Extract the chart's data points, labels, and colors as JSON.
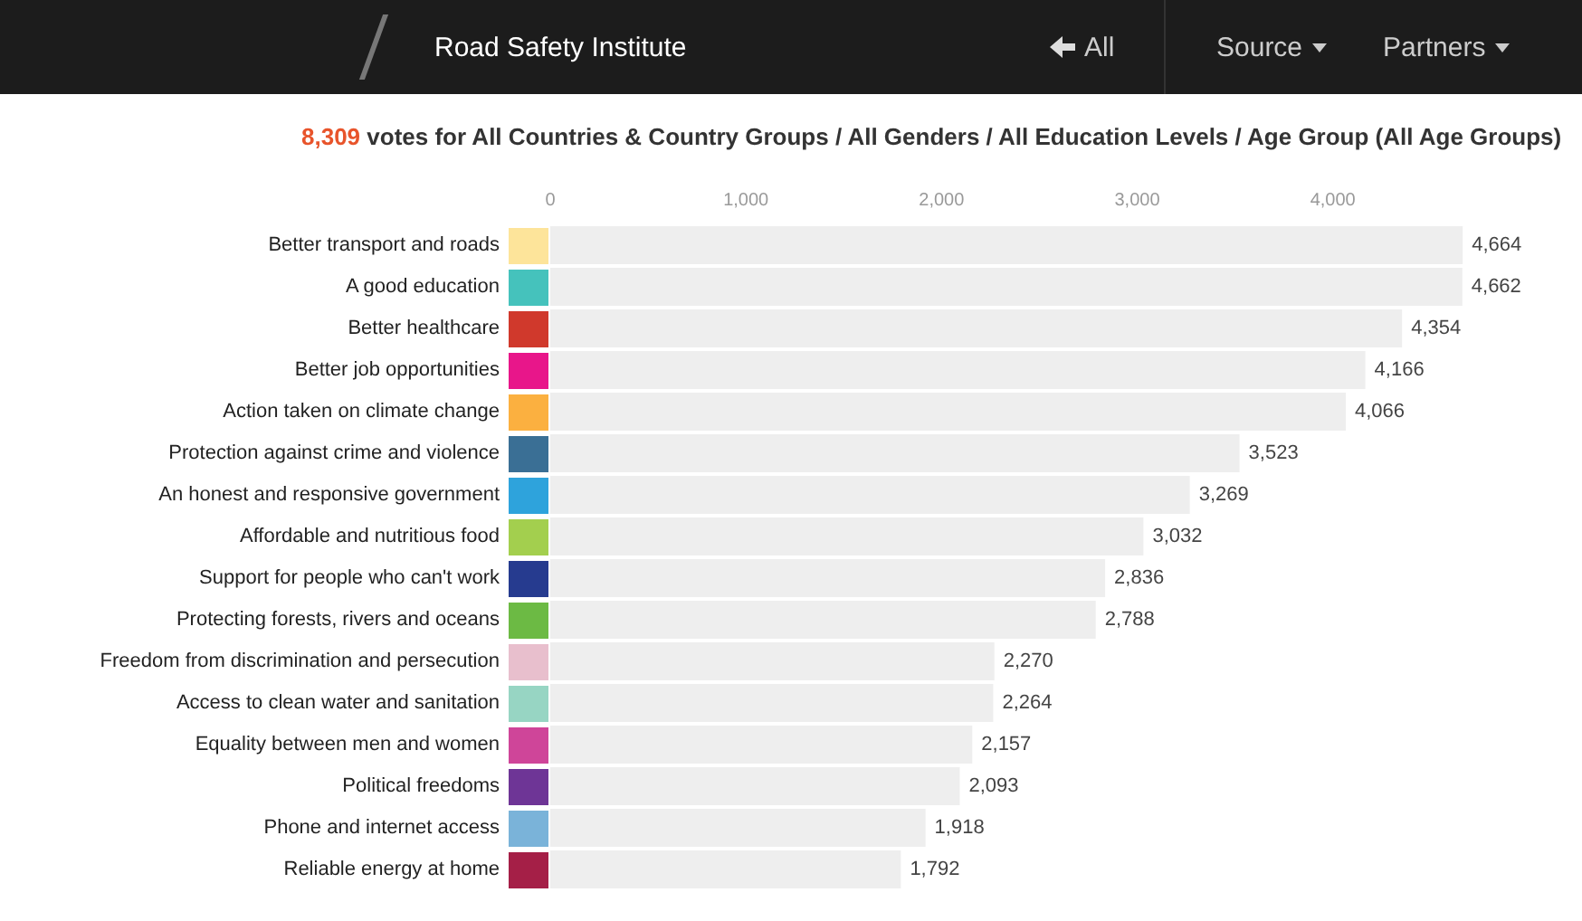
{
  "chart_data": {
    "type": "bar",
    "orientation": "horizontal",
    "title": "8,309 votes for All Countries & Country Groups / All Genders / All Education Levels / Age Group (All Age Groups)",
    "annotations": [
      "Road Safety Institute",
      "All",
      "Source",
      "Partners"
    ],
    "categories": [
      "Better transport and roads",
      "A good education",
      "Better healthcare",
      "Better job opportunities",
      "Action taken on climate change",
      "Protection against crime and violence",
      "An honest and responsive government",
      "Affordable and nutritious food",
      "Support for people who can't work",
      "Protecting forests, rivers and oceans",
      "Freedom from discrimination and persecution",
      "Access to clean water and sanitation",
      "Equality between men and women",
      "Political freedoms",
      "Phone and internet access",
      "Reliable energy at home"
    ],
    "values": [
      4664,
      4662,
      4354,
      4166,
      4066,
      3523,
      3269,
      3032,
      2836,
      2788,
      2270,
      2264,
      2157,
      2093,
      1918,
      1792
    ],
    "value_labels": [
      "4,664",
      "4,662",
      "4,354",
      "4,166",
      "4,066",
      "3,523",
      "3,269",
      "3,032",
      "2,836",
      "2,788",
      "2,270",
      "2,264",
      "2,157",
      "2,093",
      "1,918",
      "1,792"
    ],
    "color": "#eeeeee",
    "xlim": [
      0,
      4700
    ],
    "xticks": [
      0,
      {
        "value": 1000,
        "label": "1,000"
      },
      {
        "value": 2000,
        "label": "2,000"
      },
      {
        "value": 3000,
        "label": "3,000"
      },
      {
        "value": 4000,
        "label": "4,000"
      }
    ]
  }
}
